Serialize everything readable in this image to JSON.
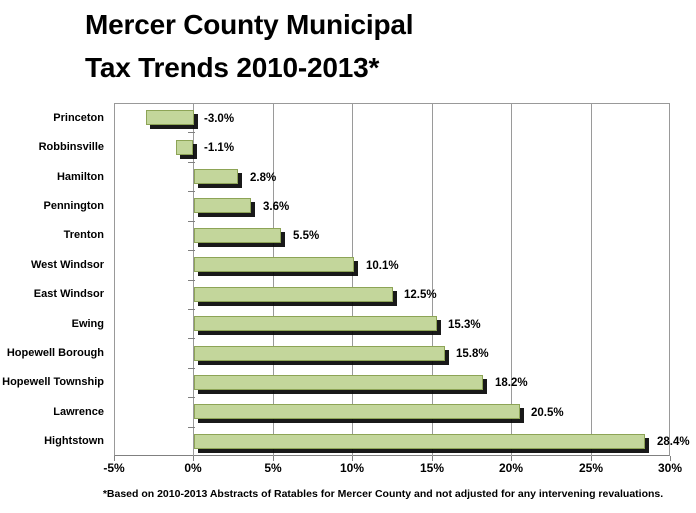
{
  "title": {
    "line1": "Mercer County Municipal",
    "line2": "Tax Trends 2010-2013*"
  },
  "footnote": "*Based on 2010-2013 Abstracts of Ratables for Mercer County and not adjusted for any intervening revaluations.",
  "chart_data": {
    "type": "bar",
    "orientation": "horizontal",
    "title": "Mercer County Municipal Tax Trends 2010-2013*",
    "categories": [
      "Princeton",
      "Robbinsville",
      "Hamilton",
      "Pennington",
      "Trenton",
      "West Windsor",
      "East Windsor",
      "Ewing",
      "Hopewell Borough",
      "Hopewell Township",
      "Lawrence",
      "Hightstown"
    ],
    "values": [
      -3.0,
      -1.1,
      2.8,
      3.6,
      5.5,
      10.1,
      12.5,
      15.3,
      15.8,
      18.2,
      20.5,
      28.4
    ],
    "data_labels": [
      "-3.0%",
      "-1.1%",
      "2.8%",
      "3.6%",
      "5.5%",
      "10.1%",
      "12.5%",
      "15.3%",
      "15.8%",
      "18.2%",
      "20.5%",
      "28.4%"
    ],
    "x_tick_labels": [
      "-5%",
      "0%",
      "5%",
      "10%",
      "15%",
      "20%",
      "25%",
      "30%"
    ],
    "x_tick_values": [
      -5,
      0,
      5,
      10,
      15,
      20,
      25,
      30
    ],
    "xlim": [
      -5,
      30
    ],
    "grid": true,
    "legend": "none",
    "bar_color": "#c3d69b",
    "bar_border_color": "#8da456",
    "shadow_color": "#000000",
    "gridline_color": "#9a9a9a",
    "axis_line_color": "#808080",
    "text_color": "#000000"
  }
}
